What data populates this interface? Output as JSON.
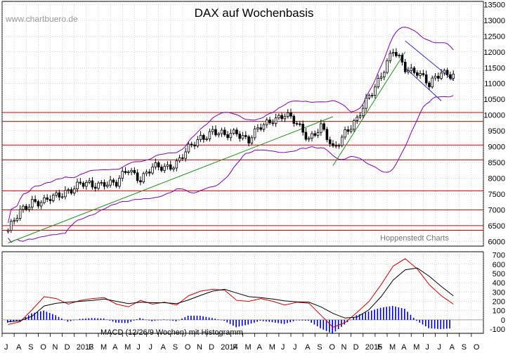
{
  "chart_data": [
    {
      "type": "candlestick",
      "title": "DAX auf Wochenbasis",
      "watermark": "www.chartbuero.de",
      "credit": "Hoppenstedt Charts",
      "y_ticks": [
        6000,
        6500,
        7000,
        7500,
        8000,
        8500,
        9000,
        9500,
        10000,
        10500,
        11000,
        11500,
        12000,
        12500,
        13000,
        13500
      ],
      "ylim": [
        5850,
        13600
      ],
      "horizontal_levels": [
        6350,
        6500,
        7000,
        7600,
        8580,
        9050,
        9800,
        10080
      ],
      "trend_lines": [
        {
          "kind": "support",
          "from": [
            "2012-07",
            5950
          ],
          "to": [
            "2014-10",
            9950
          ],
          "color": "#1f8f1f"
        },
        {
          "kind": "support",
          "from": [
            "2014-10",
            8400
          ],
          "to": [
            "2015-04",
            12000
          ],
          "color": "#1f8f1f"
        },
        {
          "kind": "channel-top",
          "from": [
            "2015-04",
            12350
          ],
          "to": [
            "2015-08",
            11100
          ],
          "color": "#2a2ad0"
        },
        {
          "kind": "channel-bottom",
          "from": [
            "2015-04",
            11500
          ],
          "to": [
            "2015-07",
            10450
          ],
          "color": "#2a2ad0"
        }
      ],
      "series": [
        {
          "name": "DAX",
          "x": [
            "2012-07",
            "2012-08",
            "2012-09",
            "2012-10",
            "2012-11",
            "2012-12",
            "2013-01",
            "2013-02",
            "2013-03",
            "2013-04",
            "2013-05",
            "2013-06",
            "2013-07",
            "2013-08",
            "2013-09",
            "2013-10",
            "2013-11",
            "2013-12",
            "2014-01",
            "2014-02",
            "2014-03",
            "2014-04",
            "2014-05",
            "2014-06",
            "2014-07",
            "2014-08",
            "2014-09",
            "2014-10",
            "2014-11",
            "2014-12",
            "2015-01",
            "2015-02",
            "2015-03",
            "2015-04",
            "2015-05",
            "2015-06",
            "2015-07",
            "2015-08"
          ],
          "close": [
            6350,
            6900,
            7300,
            7250,
            7400,
            7650,
            7800,
            7750,
            7900,
            7800,
            8300,
            8000,
            8300,
            8350,
            8500,
            8900,
            9300,
            9500,
            9300,
            9500,
            9200,
            9600,
            9900,
            10000,
            9700,
            9300,
            9600,
            8900,
            9500,
            9800,
            10600,
            11300,
            12000,
            11500,
            11400,
            10900,
            11400,
            11300
          ]
        }
      ]
    },
    {
      "type": "line",
      "label": "MACD (12/26/9 Wochen) mit Histogramm",
      "y_ticks": [
        -100,
        0,
        100,
        200,
        300,
        400,
        500,
        600,
        700
      ],
      "ylim": [
        -145,
        735
      ],
      "series": [
        {
          "name": "MACD",
          "color": "#d00000",
          "values": [
            -50,
            -20,
            110,
            250,
            230,
            170,
            210,
            230,
            240,
            170,
            140,
            210,
            170,
            190,
            160,
            260,
            310,
            330,
            320,
            210,
            200,
            230,
            200,
            160,
            190,
            180,
            50,
            -80,
            -30,
            80,
            200,
            380,
            580,
            660,
            550,
            380,
            260,
            170
          ]
        },
        {
          "name": "Signal",
          "color": "#000000",
          "values": [
            -20,
            -10,
            40,
            150,
            180,
            190,
            200,
            210,
            225,
            200,
            175,
            190,
            185,
            185,
            175,
            215,
            265,
            310,
            330,
            290,
            250,
            240,
            225,
            205,
            195,
            190,
            140,
            70,
            20,
            30,
            110,
            250,
            430,
            540,
            560,
            470,
            360,
            260
          ]
        },
        {
          "name": "Histogramm",
          "color": "#0000cc",
          "values": [
            -30,
            -10,
            70,
            100,
            50,
            -20,
            10,
            20,
            15,
            -30,
            -35,
            20,
            -15,
            5,
            -15,
            45,
            45,
            20,
            -10,
            -80,
            -50,
            -10,
            -25,
            -45,
            -5,
            -10,
            -90,
            -150,
            -50,
            50,
            90,
            130,
            150,
            120,
            -10,
            -90,
            -100,
            -90
          ]
        }
      ]
    }
  ],
  "x_axis": {
    "labels": [
      "J",
      "A",
      "S",
      "O",
      "N",
      "D",
      "2013",
      "F",
      "M",
      "A",
      "M",
      "J",
      "J",
      "A",
      "S",
      "O",
      "N",
      "D",
      "2014",
      "F",
      "M",
      "A",
      "M",
      "J",
      "J",
      "A",
      "S",
      "O",
      "N",
      "D",
      "2015",
      "F",
      "M",
      "A",
      "M",
      "J",
      "J",
      "A",
      "S",
      "O"
    ],
    "range": [
      "2012-07",
      "2015-10"
    ]
  },
  "colors": {
    "price_candle": "#000000",
    "bollinger": "#8000b0",
    "support_line": "#1f8f1f",
    "channel_line": "#2a2ad0",
    "horizontal_level": "#cc0000",
    "grid": "#b0b0b0"
  }
}
